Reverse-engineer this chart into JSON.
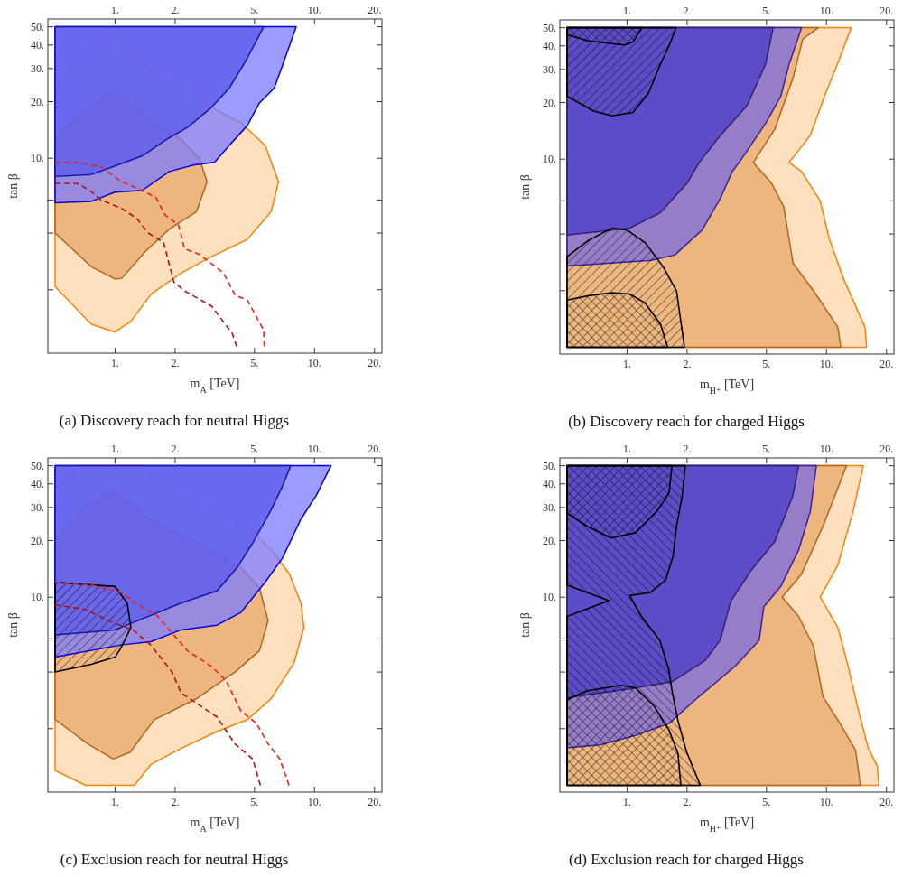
{
  "chart_data": [
    {
      "type": "area",
      "title": "(a) Discovery reach for neutral Higgs",
      "xlabel": "m$_{A}$ [TeV]",
      "ylabel": "tan β",
      "log": "xy",
      "xlim": [
        0.46,
        21.8
      ],
      "ylim": [
        0.92,
        55
      ],
      "xticks": [
        {
          "value": 1,
          "label": "1."
        },
        {
          "value": 2,
          "label": "2."
        },
        {
          "value": 5,
          "label": "5."
        },
        {
          "value": 10,
          "label": "10."
        },
        {
          "value": 20,
          "label": "20."
        }
      ],
      "yticks": [
        {
          "value": 2,
          "label": null
        },
        {
          "value": 4,
          "label": null
        },
        {
          "value": 6,
          "label": null
        },
        {
          "value": 10,
          "label": "10."
        },
        {
          "value": 20,
          "label": "20."
        },
        {
          "value": 30,
          "label": "30."
        },
        {
          "value": 40,
          "label": "40."
        },
        {
          "value": 50,
          "label": "50."
        }
      ],
      "series": [
        {
          "type": "area",
          "color": "#fdd5aa",
          "x": [
            0.5,
            0.64,
            0.85,
            1,
            1.2,
            1.52,
            2.15,
            3.04,
            4.29,
            5.66,
            6.6,
            6.06,
            4.6,
            3.04,
            2.15,
            1.52,
            1.2,
            1,
            0.76,
            0.6,
            0.5
          ],
          "values": [
            23.2,
            32.9,
            40,
            42.8,
            36.8,
            28.6,
            24.5,
            18.6,
            15.4,
            11.7,
            7.5,
            5.2,
            3.7,
            3.0,
            2.46,
            1.9,
            1.36,
            1.19,
            1.31,
            1.7,
            2.08
          ]
        },
        {
          "type": "area",
          "color": "#e8a86a",
          "x": [
            0.5,
            0.66,
            1,
            1.2,
            1.52,
            2.15,
            2.65,
            2.89,
            2.56,
            1.87,
            1.42,
            1.08,
            1,
            0.76,
            0.5
          ],
          "values": [
            12.2,
            16.9,
            23.6,
            19.6,
            15.7,
            12.6,
            10,
            7.5,
            5.2,
            4.2,
            3.2,
            2.3,
            2.28,
            2.65,
            4.0
          ]
        },
        {
          "type": "area",
          "color": "#7b7bff",
          "x": [
            0.5,
            0.5,
            0.76,
            1,
            1.37,
            1.87,
            2.47,
            3.15,
            3.74,
            4.6,
            5.28,
            6.28,
            6.96,
            8.1
          ],
          "values": [
            50,
            5.8,
            5.9,
            6.6,
            6.75,
            8.5,
            9.2,
            9.5,
            11.7,
            14.9,
            19.6,
            23.6,
            31.8,
            50
          ]
        },
        {
          "type": "area",
          "color": "#5a5aeb",
          "x": [
            0.5,
            0.5,
            0.76,
            1,
            1.37,
            1.81,
            2.31,
            3.04,
            3.74,
            4.6,
            5.56
          ],
          "values": [
            50,
            8.0,
            8.2,
            9.1,
            10.3,
            12.6,
            14.6,
            18.6,
            23.6,
            34,
            50
          ]
        },
        {
          "type": "line",
          "line_style": "dashed",
          "color": "#e8251a",
          "x": [
            0.5,
            0.64,
            0.85,
            1.08,
            1.28,
            1.6,
            1.78,
            2.08,
            2.23,
            2.65,
            3.49,
            4.0,
            4.6,
            5.56,
            5.6
          ],
          "values": [
            9.5,
            9.5,
            9.0,
            7.5,
            6.95,
            6.2,
            5.0,
            4.4,
            3.3,
            3.08,
            2.46,
            1.87,
            1.76,
            1.22,
            1
          ]
        },
        {
          "type": "line",
          "line_style": "dashed",
          "color": "#b01010",
          "x": [
            0.5,
            0.64,
            0.74,
            0.85,
            1.08,
            1.28,
            1.47,
            1.75,
            1.97,
            2.23,
            3.04,
            3.87,
            4.07
          ],
          "values": [
            7.35,
            7.35,
            6.8,
            6.0,
            5.4,
            4.8,
            4.0,
            3.57,
            2.2,
            1.97,
            1.64,
            1.17,
            1
          ]
        }
      ]
    },
    {
      "type": "area",
      "title": "(b) Discovery reach for charged Higgs",
      "xlabel": "m$_{H⁺}$ [TeV]",
      "ylabel": "tan β",
      "log": "xy",
      "xlim": [
        0.46,
        21.8
      ],
      "ylim": [
        0.92,
        55
      ],
      "xticks": [
        {
          "value": 1,
          "label": "1."
        },
        {
          "value": 2,
          "label": "2."
        },
        {
          "value": 5,
          "label": "5."
        },
        {
          "value": 10,
          "label": "10."
        },
        {
          "value": 20,
          "label": "20."
        }
      ],
      "yticks": [
        {
          "value": 2,
          "label": null
        },
        {
          "value": 4,
          "label": null
        },
        {
          "value": 6,
          "label": null
        },
        {
          "value": 10,
          "label": "10."
        },
        {
          "value": 20,
          "label": "20."
        },
        {
          "value": 30,
          "label": "30."
        },
        {
          "value": 40,
          "label": "40."
        },
        {
          "value": 50,
          "label": "50."
        }
      ],
      "series": [
        {
          "type": "area",
          "color": "#fdd5aa",
          "x": [
            0.5,
            15.9,
            15.6,
            12.2,
            10.3,
            9.3,
            7.5,
            6.5,
            8.3,
            9.9,
            11.4,
            13.3,
            0.5
          ],
          "values": [
            1,
            1,
            1.28,
            2.3,
            3.8,
            6.0,
            8.6,
            9.6,
            13.4,
            22.4,
            32.4,
            50,
            50
          ]
        },
        {
          "type": "area",
          "color": "#e8a86a",
          "x": [
            0.5,
            11.8,
            11.4,
            8.6,
            6.8,
            6.1,
            5.3,
            4.3,
            5.5,
            6.8,
            7.6,
            9.1,
            0.5
          ],
          "values": [
            1,
            1,
            1.28,
            2.0,
            2.8,
            5.6,
            7.45,
            9.6,
            14.4,
            27,
            43.5,
            50,
            50
          ]
        },
        {
          "type": "area",
          "color": "#7a6ae0",
          "x": [
            0.5,
            0.5,
            1.32,
            1.74,
            2.38,
            2.94,
            3.37,
            3.75,
            4.95,
            5.9,
            6.5,
            7.5
          ],
          "values": [
            50,
            2.7,
            2.9,
            3.1,
            4.2,
            6.2,
            8.6,
            10,
            15.5,
            21.6,
            32,
            50
          ]
        },
        {
          "type": "area",
          "color": "#4a3cc8",
          "x": [
            0.5,
            0.5,
            1.03,
            1.47,
            2.0,
            2.3,
            2.94,
            4.0,
            4.95,
            5.4
          ],
          "values": [
            50,
            3.95,
            4.3,
            5.2,
            7.45,
            9.6,
            13.4,
            19.3,
            32,
            50
          ]
        },
        {
          "type": "area",
          "color": "#000000",
          "x": [
            0.5,
            0.5,
            0.68,
            0.84,
            1.07,
            1.28,
            1.47,
            1.63,
            1.76
          ],
          "values": [
            50,
            21.6,
            18,
            17.0,
            17.7,
            22.4,
            32,
            40.5,
            50
          ]
        },
        {
          "type": "area",
          "color": "#000000",
          "x": [
            0.5,
            0.5,
            0.64,
            0.97,
            1.07,
            1.19
          ],
          "values": [
            50,
            46,
            42.5,
            40.5,
            42,
            50
          ]
        },
        {
          "type": "area",
          "color": "#000000",
          "x": [
            0.5,
            0.5,
            0.64,
            0.84,
            1,
            1.23,
            1.52,
            1.77,
            1.94
          ],
          "values": [
            1,
            3.03,
            3.7,
            4.3,
            4.2,
            3.6,
            2.67,
            1.99,
            1
          ]
        },
        {
          "type": "area",
          "color": "#000000",
          "x": [
            0.5,
            0.5,
            0.64,
            0.84,
            1.03,
            1.23,
            1.47,
            1.6
          ],
          "values": [
            1,
            1.78,
            1.88,
            1.95,
            1.92,
            1.72,
            1.33,
            1
          ]
        }
      ]
    },
    {
      "type": "area",
      "title": "(c) Exclusion reach for neutral Higgs",
      "xlabel": "m$_{A}$ [TeV]",
      "ylabel": "tan β",
      "log": "xy",
      "xlim": [
        0.46,
        21.8
      ],
      "ylim": [
        0.92,
        55
      ],
      "xticks": [
        {
          "value": 1,
          "label": "1."
        },
        {
          "value": 2,
          "label": "2."
        },
        {
          "value": 5,
          "label": "5."
        },
        {
          "value": 10,
          "label": "10."
        },
        {
          "value": 20,
          "label": "20."
        }
      ],
      "yticks": [
        {
          "value": 2,
          "label": null
        },
        {
          "value": 4,
          "label": null
        },
        {
          "value": 6,
          "label": null
        },
        {
          "value": 10,
          "label": "10."
        },
        {
          "value": 20,
          "label": "20."
        },
        {
          "value": 30,
          "label": "30."
        },
        {
          "value": 40,
          "label": "40."
        },
        {
          "value": 50,
          "label": "50."
        }
      ],
      "series": [
        {
          "type": "area",
          "color": "#fdd5aa",
          "x": [
            0.5,
            0.65,
            1.4,
            1.62,
            2.14,
            3.03,
            4.28,
            6.05,
            7.45,
            8.55,
            8.85,
            7.9,
            6.05,
            4.6,
            3.24,
            2.14,
            1.51,
            1.25,
            0.71,
            0.5
          ],
          "values": [
            37.3,
            50,
            50,
            44,
            34.7,
            29.5,
            25,
            18,
            13.4,
            9.3,
            6.9,
            4.48,
            2.88,
            2.23,
            1.93,
            1.57,
            1.29,
            1,
            1,
            1.2
          ]
        },
        {
          "type": "area",
          "color": "#e8a86a",
          "x": [
            0.5,
            0.71,
            0.98,
            1.27,
            1.57,
            2.14,
            3.03,
            4.28,
            5.3,
            5.85,
            5.3,
            3.99,
            2.55,
            1.57,
            1.19,
            0.98,
            0.73,
            0.5
          ],
          "values": [
            20,
            30,
            37.3,
            30,
            25,
            21.6,
            18,
            14.4,
            11.2,
            7.5,
            5.2,
            4.0,
            2.88,
            2.23,
            1.5,
            1.38,
            1.66,
            2.24
          ]
        },
        {
          "type": "area",
          "color": "#7b7bff",
          "x": [
            0.5,
            0.5,
            1.07,
            1.51,
            2.14,
            3.24,
            4.28,
            5.65,
            6.9,
            8.55,
            10.2,
            12.1
          ],
          "values": [
            50,
            4.8,
            5.57,
            5.8,
            6.7,
            7.1,
            8.3,
            12,
            16.1,
            26,
            34.7,
            50
          ]
        },
        {
          "type": "area",
          "color": "#5a5aeb",
          "x": [
            0.5,
            0.5,
            1,
            1.51,
            2.14,
            3.24,
            4.1,
            4.9,
            6.05,
            6.9,
            7.6
          ],
          "values": [
            50,
            6.3,
            6.7,
            8.0,
            9.3,
            10.8,
            14.4,
            19.4,
            29,
            38.8,
            50
          ]
        },
        {
          "type": "area",
          "color": "#000000",
          "x": [
            0.5,
            1,
            1.15,
            1.2,
            1.07,
            1,
            0.76,
            0.5
          ],
          "values": [
            12,
            11.4,
            9.3,
            6.9,
            5.37,
            4.8,
            4.4,
            4.0
          ]
        },
        {
          "type": "line",
          "line_style": "dashed",
          "color": "#e8251a",
          "x": [
            0.5,
            0.76,
            1.07,
            1.27,
            1.62,
            1.87,
            2.3,
            3.03,
            3.6,
            4.28,
            5.1,
            5.85,
            6.7,
            7.45
          ],
          "values": [
            12.0,
            11.6,
            10.6,
            9.3,
            8.0,
            6.7,
            5.2,
            4.3,
            3.6,
            2.48,
            2.14,
            1.66,
            1.38,
            1
          ]
        },
        {
          "type": "line",
          "line_style": "dashed",
          "color": "#b01010",
          "x": [
            0.5,
            0.71,
            0.94,
            1.23,
            1.51,
            1.93,
            2.14,
            2.63,
            3.24,
            3.99,
            4.9,
            5.35
          ],
          "values": [
            9.1,
            8.6,
            7.45,
            6.7,
            5.57,
            4.0,
            3.1,
            2.68,
            2.31,
            1.66,
            1.38,
            1
          ]
        }
      ]
    },
    {
      "type": "area",
      "title": "(d) Exclusion reach for charged Higgs",
      "xlabel": "m$_{H⁺}$ [TeV]",
      "ylabel": "tan β",
      "log": "xy",
      "xlim": [
        0.46,
        21.8
      ],
      "ylim": [
        0.92,
        55
      ],
      "xticks": [
        {
          "value": 1,
          "label": "1."
        },
        {
          "value": 2,
          "label": "2."
        },
        {
          "value": 5,
          "label": "5."
        },
        {
          "value": 10,
          "label": "10."
        },
        {
          "value": 20,
          "label": "20."
        }
      ],
      "yticks": [
        {
          "value": 2,
          "label": null
        },
        {
          "value": 4,
          "label": null
        },
        {
          "value": 6,
          "label": null
        },
        {
          "value": 10,
          "label": "10."
        },
        {
          "value": 20,
          "label": "20."
        },
        {
          "value": 30,
          "label": "30."
        },
        {
          "value": 40,
          "label": "40."
        },
        {
          "value": 50,
          "label": "50."
        }
      ],
      "series": [
        {
          "type": "area",
          "color": "#fdd5aa",
          "x": [
            0.5,
            18.3,
            18,
            16.2,
            14.5,
            12.7,
            11.4,
            9.3,
            11.4,
            13.6,
            15.3,
            0.5
          ],
          "values": [
            1,
            1,
            1.26,
            1.58,
            2.46,
            4.5,
            6.9,
            10,
            14.8,
            28.6,
            50,
            50
          ]
        },
        {
          "type": "area",
          "color": "#e8a86a",
          "x": [
            0.5,
            14.8,
            14,
            11.8,
            9.6,
            8.6,
            7.25,
            6,
            7.5,
            9.6,
            12.6,
            0.5
          ],
          "values": [
            1,
            1,
            1.53,
            2.1,
            2.96,
            5.5,
            7.9,
            10,
            13.3,
            23.8,
            50,
            50
          ]
        },
        {
          "type": "area",
          "color": "#7a6ae0",
          "x": [
            0.5,
            0.5,
            0.73,
            1.1,
            1.62,
            2.2,
            3.49,
            4.6,
            4.85,
            5.9,
            7.25,
            8.3,
            8.9
          ],
          "values": [
            50,
            1.58,
            1.64,
            1.84,
            2.13,
            2.85,
            4.3,
            5.9,
            8.9,
            11.4,
            17.8,
            28.6,
            50
          ]
        },
        {
          "type": "area",
          "color": "#4a3cc8",
          "x": [
            0.5,
            0.5,
            1.03,
            1.68,
            2.46,
            2.93,
            3.31,
            4.15,
            5.5,
            6.77,
            7.25
          ],
          "values": [
            50,
            2.92,
            3.25,
            3.55,
            4.6,
            5.9,
            9.5,
            13.7,
            19.8,
            34.4,
            50
          ]
        },
        {
          "type": "area",
          "color": "#000000",
          "x": [
            0.5,
            0.5,
            0.63,
            0.93,
            1.1,
            1.36,
            1.62,
            1.8,
            1.86
          ],
          "values": [
            1,
            2.85,
            3.18,
            3.4,
            3.3,
            2.66,
            1.97,
            1.48,
            1
          ]
        },
        {
          "type": "area",
          "color": "#000000",
          "x": [
            0.5,
            1.96,
            1.89,
            1.77,
            1.7,
            1.56,
            1.31,
            1.03,
            1.18,
            1.46,
            1.62,
            1.68,
            1.8,
            1.99,
            2.33,
            0.5,
            0.5,
            0.81,
            0.5
          ],
          "values": [
            50,
            50,
            34.5,
            23.8,
            16.5,
            12.3,
            10.6,
            10.2,
            7.9,
            5.9,
            4.1,
            3.18,
            2.2,
            1.5,
            1,
            1,
            7.9,
            9.6,
            11.6
          ]
        },
        {
          "type": "area",
          "color": "#000000",
          "x": [
            0.5,
            0.5,
            0.63,
            0.83,
            1.1,
            1.41,
            1.62,
            1.68
          ],
          "values": [
            50,
            28,
            23.8,
            20.6,
            22,
            28.6,
            35.6,
            50
          ]
        }
      ]
    }
  ]
}
